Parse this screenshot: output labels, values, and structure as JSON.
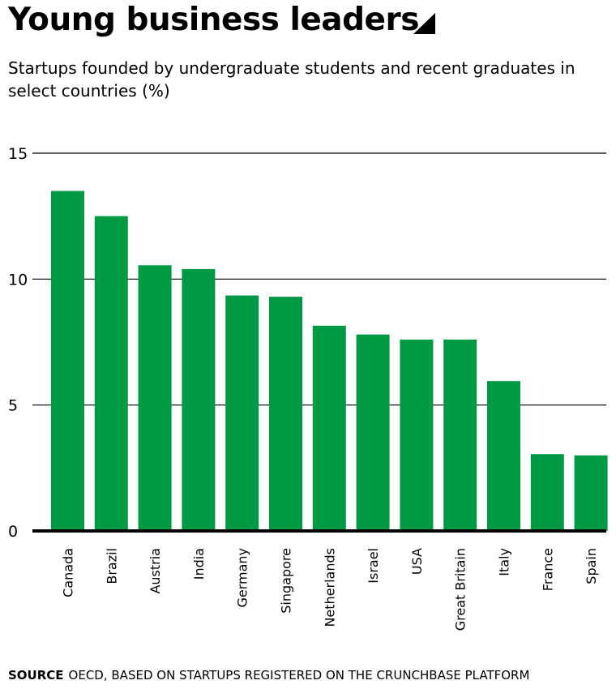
{
  "header": {
    "title": "Young business leaders",
    "subtitle": "Startups founded by undergraduate students and recent graduates in select countries (%)"
  },
  "footer": {
    "source_label": "SOURCE",
    "source_text": "OECD, BASED ON STARTUPS REGISTERED ON THE CRUNCHBASE PLATFORM"
  },
  "colors": {
    "bar": "#009a44",
    "axis": "#000000",
    "grid": "#000000"
  },
  "chart_data": {
    "type": "bar",
    "title": "Young business leaders",
    "subtitle": "Startups founded by undergraduate students and recent graduates in select countries (%)",
    "categories": [
      "Canada",
      "Brazil",
      "Austria",
      "India",
      "Germany",
      "Singapore",
      "Netherlands",
      "Israel",
      "USA",
      "Great Britain",
      "Italy",
      "France",
      "Spain"
    ],
    "values": [
      13.5,
      12.5,
      10.55,
      10.4,
      9.35,
      9.3,
      8.15,
      7.8,
      7.6,
      7.6,
      5.95,
      3.05,
      3.0
    ],
    "ylim": [
      0,
      15
    ],
    "yticks": [
      0,
      5,
      10,
      15
    ],
    "xlabel": "",
    "ylabel": "",
    "grid": true,
    "legend": "none"
  }
}
